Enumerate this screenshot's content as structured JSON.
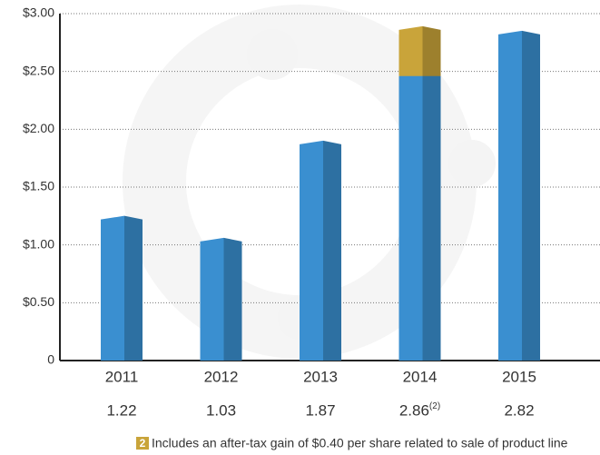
{
  "chart_data": {
    "type": "bar",
    "stacked": true,
    "categories": [
      "2011",
      "2012",
      "2013",
      "2014",
      "2015"
    ],
    "series": [
      {
        "color": "#3a8fd0",
        "values": [
          1.22,
          1.03,
          1.87,
          2.46,
          2.82
        ]
      },
      {
        "color": "#c9a43a",
        "values": [
          null,
          null,
          null,
          0.4,
          null
        ]
      }
    ],
    "totals": [
      1.22,
      1.03,
      1.87,
      2.86,
      2.82
    ],
    "totals_marker": {
      "index": 3,
      "text": "(2)"
    },
    "ylim": [
      0,
      3
    ],
    "yticks": [
      {
        "value": 0,
        "label": "0"
      },
      {
        "value": 0.5,
        "label": "$0.50"
      },
      {
        "value": 1,
        "label": "$1.00"
      },
      {
        "value": 1.5,
        "label": "$1.50"
      },
      {
        "value": 2,
        "label": "$2.00"
      },
      {
        "value": 2.5,
        "label": "$2.50"
      },
      {
        "value": 3,
        "label": "$3.00"
      }
    ],
    "grid": true,
    "footnote": {
      "marker": "2",
      "text": "Includes an after-tax gain of $0.40 per share related to sale of product line"
    }
  }
}
